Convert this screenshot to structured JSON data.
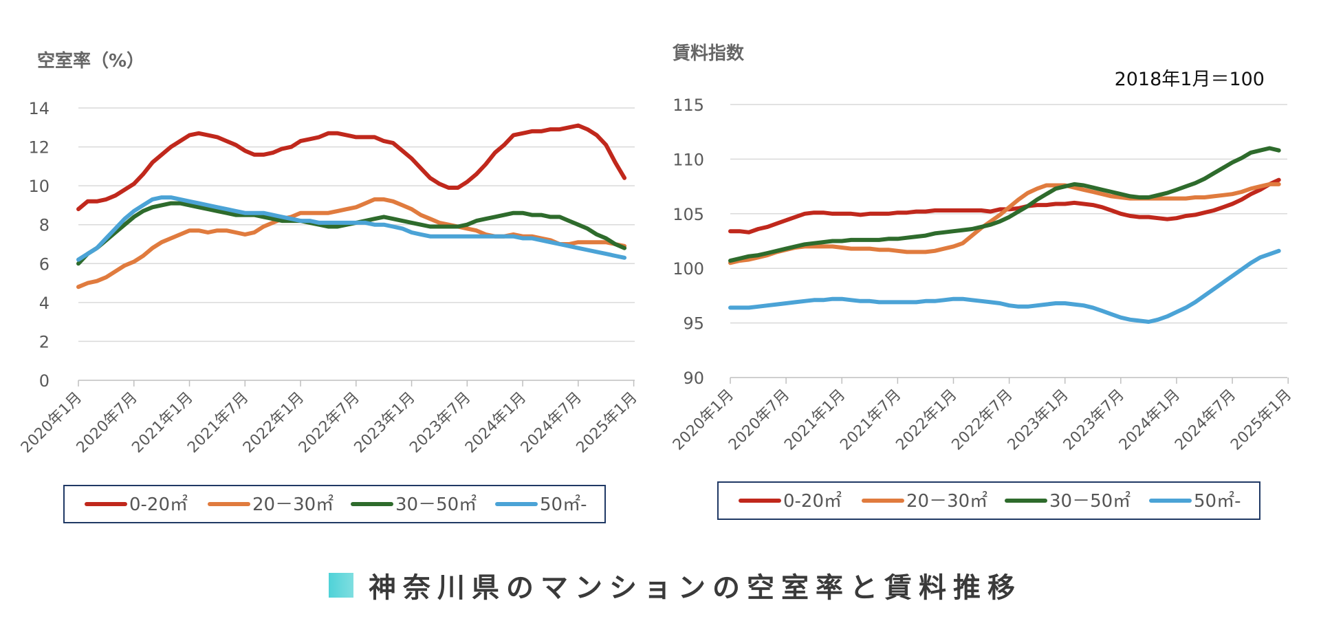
{
  "caption": {
    "text": "神奈川県のマンションの空室率と賃料推移",
    "marker_color": "#4fd2d8"
  },
  "chart_data": [
    {
      "type": "line",
      "title": "",
      "ylabel": "空室率（%）",
      "xlabel": "",
      "note": "",
      "ylim": [
        0,
        14
      ],
      "yticks": [
        "0",
        "2",
        "4",
        "6",
        "8",
        "10",
        "12",
        "14"
      ],
      "xtick_labels": [
        "2020年1月",
        "2020年7月",
        "2021年1月",
        "2021年7月",
        "2022年1月",
        "2022年7月",
        "2023年1月",
        "2023年7月",
        "2024年1月",
        "2024年7月",
        "2025年1月"
      ],
      "legend": "bottom",
      "series": [
        {
          "name": "0-20㎡",
          "color": "#c0281c",
          "values": [
            8.8,
            9.2,
            9.2,
            9.3,
            9.5,
            9.8,
            10.1,
            10.6,
            11.2,
            11.6,
            12,
            12.3,
            12.6,
            12.7,
            12.6,
            12.5,
            12.3,
            12.1,
            11.8,
            11.6,
            11.6,
            11.7,
            11.9,
            12,
            12.3,
            12.4,
            12.5,
            12.7,
            12.7,
            12.6,
            12.5,
            12.5,
            12.5,
            12.3,
            12.2,
            11.8,
            11.4,
            10.9,
            10.4,
            10.1,
            9.9,
            9.9,
            10.2,
            10.6,
            11.1,
            11.7,
            12.1,
            12.6,
            12.7,
            12.8,
            12.8,
            12.9,
            12.9,
            13,
            13.1,
            12.9,
            12.6,
            12.1,
            11.2,
            10.4
          ]
        },
        {
          "name": "20－30㎡",
          "color": "#e07b3e",
          "values": [
            4.8,
            5,
            5.1,
            5.3,
            5.6,
            5.9,
            6.1,
            6.4,
            6.8,
            7.1,
            7.3,
            7.5,
            7.7,
            7.7,
            7.6,
            7.7,
            7.7,
            7.6,
            7.5,
            7.6,
            7.9,
            8.1,
            8.3,
            8.4,
            8.6,
            8.6,
            8.6,
            8.6,
            8.7,
            8.8,
            8.9,
            9.1,
            9.3,
            9.3,
            9.2,
            9,
            8.8,
            8.5,
            8.3,
            8.1,
            8,
            7.9,
            7.8,
            7.7,
            7.5,
            7.4,
            7.4,
            7.5,
            7.4,
            7.4,
            7.3,
            7.2,
            7,
            7,
            7.1,
            7.1,
            7.1,
            7.1,
            7,
            6.9
          ]
        },
        {
          "name": "30－50㎡",
          "color": "#2e6b2c",
          "values": [
            6,
            6.5,
            6.8,
            7.2,
            7.6,
            8,
            8.4,
            8.7,
            8.9,
            9,
            9.1,
            9.1,
            9,
            8.9,
            8.8,
            8.7,
            8.6,
            8.5,
            8.5,
            8.5,
            8.4,
            8.3,
            8.2,
            8.2,
            8.2,
            8.1,
            8,
            7.9,
            7.9,
            8,
            8.1,
            8.2,
            8.3,
            8.4,
            8.3,
            8.2,
            8.1,
            8,
            7.9,
            7.9,
            7.9,
            7.9,
            8,
            8.2,
            8.3,
            8.4,
            8.5,
            8.6,
            8.6,
            8.5,
            8.5,
            8.4,
            8.4,
            8.2,
            8,
            7.8,
            7.5,
            7.3,
            7,
            6.8
          ]
        },
        {
          "name": "50㎡-",
          "color": "#4ba3d6",
          "values": [
            6.2,
            6.5,
            6.8,
            7.3,
            7.8,
            8.3,
            8.7,
            9,
            9.3,
            9.4,
            9.4,
            9.3,
            9.2,
            9.1,
            9,
            8.9,
            8.8,
            8.7,
            8.6,
            8.6,
            8.6,
            8.5,
            8.4,
            8.3,
            8.2,
            8.2,
            8.1,
            8.1,
            8.1,
            8.1,
            8.1,
            8.1,
            8,
            8,
            7.9,
            7.8,
            7.6,
            7.5,
            7.4,
            7.4,
            7.4,
            7.4,
            7.4,
            7.4,
            7.4,
            7.4,
            7.4,
            7.4,
            7.3,
            7.3,
            7.2,
            7.1,
            7,
            6.9,
            6.8,
            6.7,
            6.6,
            6.5,
            6.4,
            6.3
          ]
        }
      ]
    },
    {
      "type": "line",
      "title": "",
      "ylabel": "賃料指数",
      "xlabel": "",
      "note": "2018年1月＝100",
      "ylim": [
        90,
        115
      ],
      "yticks": [
        "90",
        "95",
        "100",
        "105",
        "110",
        "115"
      ],
      "xtick_labels": [
        "2020年1月",
        "2020年7月",
        "2021年1月",
        "2021年7月",
        "2022年1月",
        "2022年7月",
        "2023年1月",
        "2023年7月",
        "2024年1月",
        "2024年7月",
        "2025年1月"
      ],
      "legend": "bottom",
      "series": [
        {
          "name": "0-20㎡",
          "color": "#c0281c",
          "values": [
            103.4,
            103.4,
            103.3,
            103.6,
            103.8,
            104.1,
            104.4,
            104.7,
            105,
            105.1,
            105.1,
            105,
            105,
            105,
            104.9,
            105,
            105,
            105,
            105.1,
            105.1,
            105.2,
            105.2,
            105.3,
            105.3,
            105.3,
            105.3,
            105.3,
            105.3,
            105.2,
            105.4,
            105.4,
            105.5,
            105.7,
            105.8,
            105.8,
            105.9,
            105.9,
            106,
            105.9,
            105.8,
            105.6,
            105.3,
            105,
            104.8,
            104.7,
            104.7,
            104.6,
            104.5,
            104.6,
            104.8,
            104.9,
            105.1,
            105.3,
            105.6,
            105.9,
            106.3,
            106.8,
            107.2,
            107.7,
            108.1
          ]
        },
        {
          "name": "20－30㎡",
          "color": "#e07b3e",
          "values": [
            100.5,
            100.7,
            100.8,
            101,
            101.2,
            101.5,
            101.7,
            101.9,
            102,
            102,
            102,
            102,
            101.9,
            101.8,
            101.8,
            101.8,
            101.7,
            101.7,
            101.6,
            101.5,
            101.5,
            101.5,
            101.6,
            101.8,
            102,
            102.3,
            103,
            103.7,
            104.3,
            104.9,
            105.6,
            106.3,
            106.9,
            107.3,
            107.6,
            107.6,
            107.6,
            107.4,
            107.2,
            107,
            106.8,
            106.6,
            106.5,
            106.4,
            106.4,
            106.4,
            106.4,
            106.4,
            106.4,
            106.4,
            106.5,
            106.5,
            106.6,
            106.7,
            106.8,
            107,
            107.3,
            107.5,
            107.7,
            107.7
          ]
        },
        {
          "name": "30－50㎡",
          "color": "#2e6b2c",
          "values": [
            100.7,
            100.9,
            101.1,
            101.2,
            101.4,
            101.6,
            101.8,
            102,
            102.2,
            102.3,
            102.4,
            102.5,
            102.5,
            102.6,
            102.6,
            102.6,
            102.6,
            102.7,
            102.7,
            102.8,
            102.9,
            103,
            103.2,
            103.3,
            103.4,
            103.5,
            103.6,
            103.8,
            104,
            104.3,
            104.7,
            105.2,
            105.7,
            106.3,
            106.8,
            107.3,
            107.5,
            107.7,
            107.6,
            107.4,
            107.2,
            107,
            106.8,
            106.6,
            106.5,
            106.5,
            106.7,
            106.9,
            107.2,
            107.5,
            107.8,
            108.2,
            108.7,
            109.2,
            109.7,
            110.1,
            110.6,
            110.8,
            111,
            110.8
          ]
        },
        {
          "name": "50㎡-",
          "color": "#4ba3d6",
          "values": [
            96.4,
            96.4,
            96.4,
            96.5,
            96.6,
            96.7,
            96.8,
            96.9,
            97,
            97.1,
            97.1,
            97.2,
            97.2,
            97.1,
            97,
            97,
            96.9,
            96.9,
            96.9,
            96.9,
            96.9,
            97,
            97,
            97.1,
            97.2,
            97.2,
            97.1,
            97,
            96.9,
            96.8,
            96.6,
            96.5,
            96.5,
            96.6,
            96.7,
            96.8,
            96.8,
            96.7,
            96.6,
            96.4,
            96.1,
            95.8,
            95.5,
            95.3,
            95.2,
            95.1,
            95.3,
            95.6,
            96,
            96.4,
            96.9,
            97.5,
            98.1,
            98.7,
            99.3,
            99.9,
            100.5,
            101,
            101.3,
            101.6
          ]
        }
      ]
    }
  ]
}
